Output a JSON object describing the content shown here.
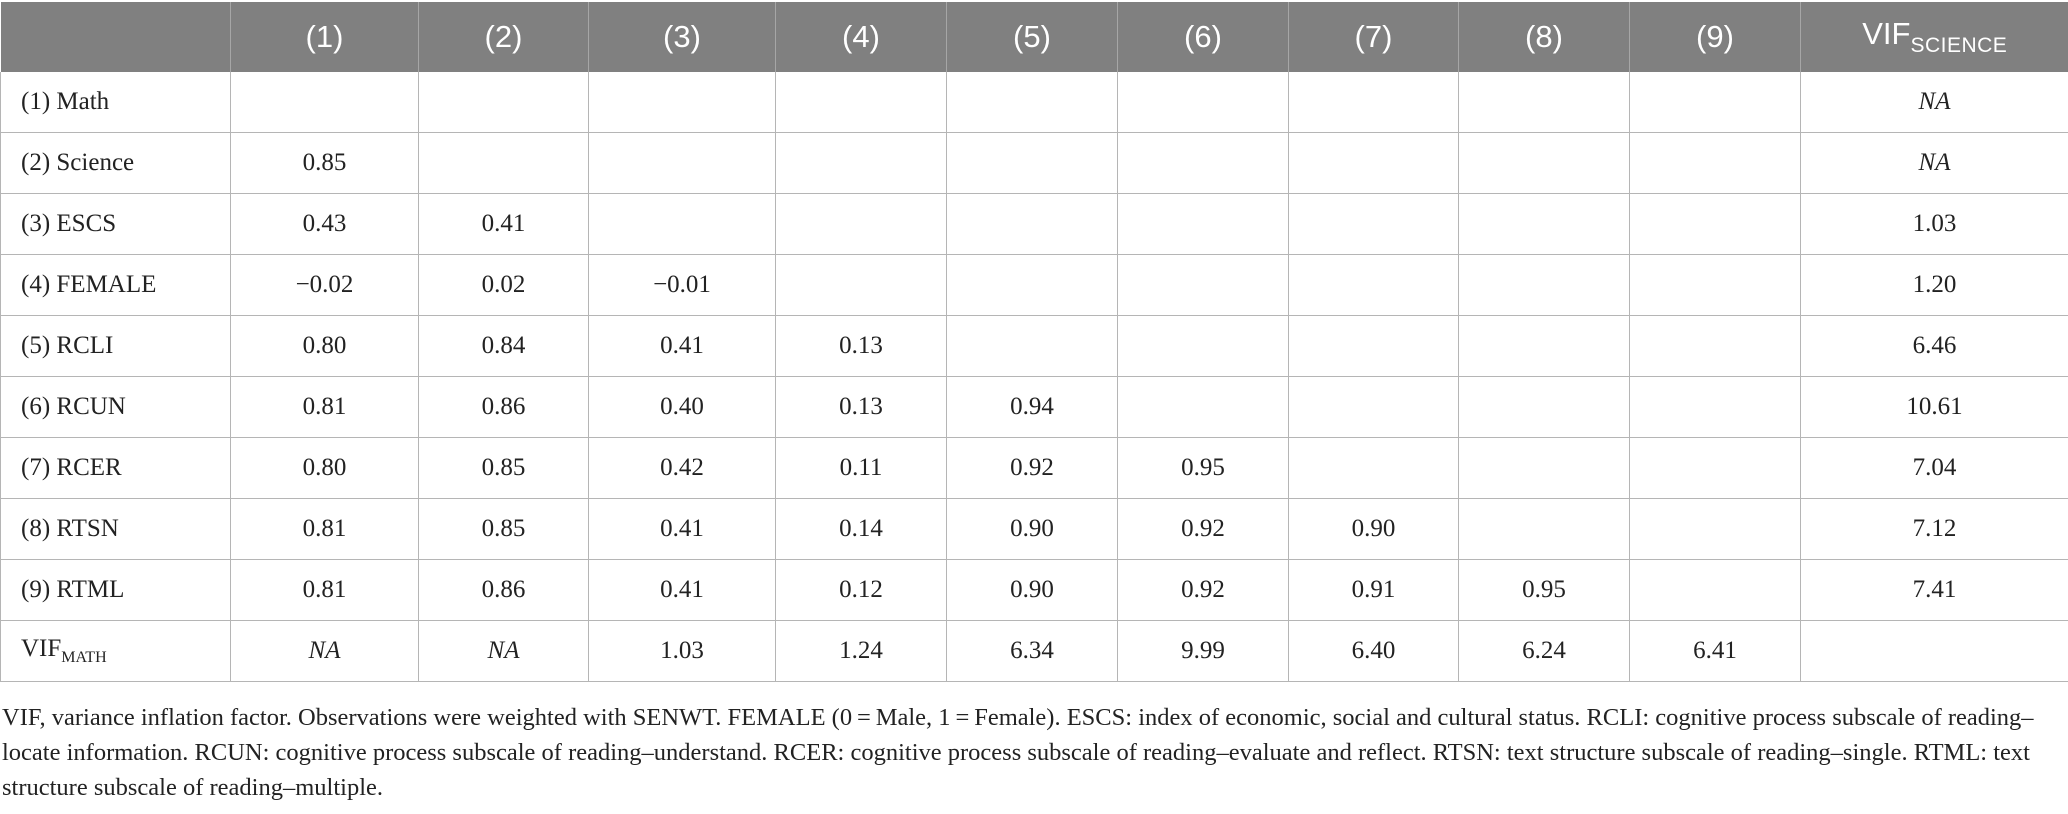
{
  "table": {
    "header": {
      "corner": "",
      "columns": [
        "(1)",
        "(2)",
        "(3)",
        "(4)",
        "(5)",
        "(6)",
        "(7)",
        "(8)",
        "(9)"
      ],
      "vif_col_main": "VIF",
      "vif_col_sub": "SCIENCE"
    },
    "rows": [
      {
        "label": "(1) Math",
        "cells": [
          "",
          "",
          "",
          "",
          "",
          "",
          "",
          "",
          ""
        ],
        "vif": "NA"
      },
      {
        "label": "(2) Science",
        "cells": [
          "0.85",
          "",
          "",
          "",
          "",
          "",
          "",
          "",
          ""
        ],
        "vif": "NA"
      },
      {
        "label": "(3) ESCS",
        "cells": [
          "0.43",
          "0.41",
          "",
          "",
          "",
          "",
          "",
          "",
          ""
        ],
        "vif": "1.03"
      },
      {
        "label": "(4) FEMALE",
        "cells": [
          "−0.02",
          "0.02",
          "−0.01",
          "",
          "",
          "",
          "",
          "",
          ""
        ],
        "vif": "1.20"
      },
      {
        "label": "(5) RCLI",
        "cells": [
          "0.80",
          "0.84",
          "0.41",
          "0.13",
          "",
          "",
          "",
          "",
          ""
        ],
        "vif": "6.46"
      },
      {
        "label": "(6) RCUN",
        "cells": [
          "0.81",
          "0.86",
          "0.40",
          "0.13",
          "0.94",
          "",
          "",
          "",
          ""
        ],
        "vif": "10.61"
      },
      {
        "label": "(7) RCER",
        "cells": [
          "0.80",
          "0.85",
          "0.42",
          "0.11",
          "0.92",
          "0.95",
          "",
          "",
          ""
        ],
        "vif": "7.04"
      },
      {
        "label": "(8) RTSN",
        "cells": [
          "0.81",
          "0.85",
          "0.41",
          "0.14",
          "0.90",
          "0.92",
          "0.90",
          "",
          ""
        ],
        "vif": "7.12"
      },
      {
        "label": "(9) RTML",
        "cells": [
          "0.81",
          "0.86",
          "0.41",
          "0.12",
          "0.90",
          "0.92",
          "0.91",
          "0.95",
          ""
        ],
        "vif": "7.41"
      }
    ],
    "vif_math_row": {
      "label_main": "VIF",
      "label_sub": "MATH",
      "cells": [
        "NA",
        "NA",
        "1.03",
        "1.24",
        "6.34",
        "9.99",
        "6.40",
        "6.24",
        "6.41"
      ],
      "vif": ""
    }
  },
  "footnote": "VIF, variance inflation factor. Observations were weighted with SENWT. FEMALE (0 = Male, 1 = Female). ESCS: index of economic, social and cultural status. RCLI: cognitive process subscale of reading–locate information. RCUN: cognitive process subscale of reading–understand. RCER: cognitive process subscale of reading–evaluate and reflect. RTSN: text structure subscale of reading–single. RTML: text structure subscale of reading–multiple."
}
